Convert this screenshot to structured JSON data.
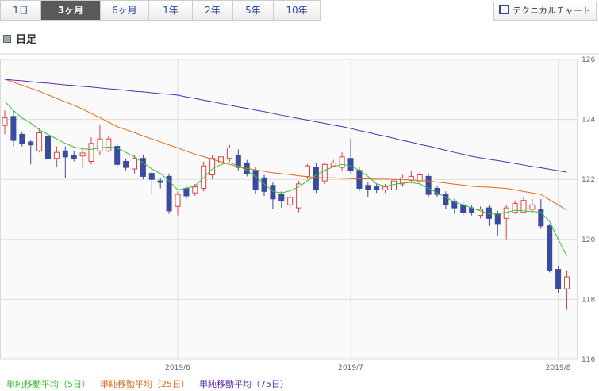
{
  "tabs": [
    "1日",
    "3ヶ月",
    "6ヶ月",
    "1年",
    "2年",
    "5年",
    "10年"
  ],
  "button": "テクニカルチャート",
  "chart_label": "日足",
  "chart_data": {
    "type": "candlestick",
    "categories": [
      null,
      null,
      null,
      null,
      null,
      null,
      null,
      null,
      null,
      null,
      null,
      null,
      null,
      null,
      null,
      null,
      null,
      null,
      null,
      null,
      "2019/6",
      null,
      null,
      null,
      null,
      null,
      null,
      null,
      null,
      null,
      null,
      null,
      null,
      null,
      null,
      null,
      null,
      null,
      null,
      null,
      "2019/7",
      null,
      null,
      null,
      null,
      null,
      null,
      null,
      null,
      null,
      null,
      null,
      null,
      null,
      null,
      null,
      null,
      null,
      null,
      null,
      null,
      null,
      null,
      null,
      "2019/8",
      null
    ],
    "open": [
      123.8,
      124.1,
      123.5,
      123.25,
      122.95,
      123.45,
      122.7,
      122.95,
      122.8,
      122.78,
      122.6,
      122.95,
      122.95,
      123.1,
      122.6,
      122.35,
      122.7,
      122.2,
      121.95,
      122.1,
      121.1,
      121.7,
      121.55,
      121.7,
      122.15,
      122.55,
      122.7,
      122.8,
      122.55,
      122.3,
      122.05,
      121.8,
      121.5,
      121.15,
      121.05,
      122.1,
      122.4,
      121.95,
      122.45,
      122.4,
      122.7,
      122.3,
      121.8,
      121.75,
      121.65,
      121.65,
      121.85,
      121.97,
      121.95,
      122.1,
      121.7,
      121.5,
      121.25,
      121.15,
      121.05,
      120.8,
      121.05,
      120.85,
      120.7,
      120.9,
      120.9,
      121.0,
      121.0,
      120.45,
      119.0,
      118.35
    ],
    "high": [
      124.3,
      124.3,
      123.6,
      123.3,
      123.7,
      123.6,
      123.1,
      123.1,
      122.95,
      123.0,
      123.4,
      123.8,
      123.45,
      123.2,
      122.7,
      122.8,
      122.8,
      122.3,
      122.05,
      122.2,
      121.6,
      121.8,
      121.85,
      122.6,
      122.8,
      123.0,
      123.15,
      123.0,
      122.65,
      122.4,
      122.15,
      121.9,
      121.6,
      121.5,
      121.95,
      122.5,
      122.55,
      122.55,
      122.65,
      122.9,
      123.35,
      122.4,
      121.9,
      121.85,
      121.85,
      122.05,
      122.15,
      122.3,
      122.25,
      122.2,
      121.8,
      121.6,
      121.35,
      121.25,
      121.15,
      121.1,
      121.15,
      120.95,
      121.15,
      121.3,
      121.4,
      121.35,
      121.35,
      120.5,
      119.1,
      118.95
    ],
    "low": [
      123.5,
      123.1,
      123.1,
      122.5,
      122.9,
      122.55,
      122.4,
      122.05,
      122.6,
      122.4,
      122.5,
      122.8,
      122.9,
      122.4,
      122.3,
      122.2,
      122.0,
      121.5,
      121.7,
      120.85,
      120.8,
      121.35,
      121.45,
      121.6,
      122.0,
      122.45,
      122.6,
      122.3,
      122.1,
      121.5,
      121.45,
      121.0,
      121.05,
      121.0,
      120.9,
      122.0,
      121.55,
      121.85,
      122.4,
      122.3,
      122.2,
      121.6,
      121.4,
      121.55,
      121.55,
      121.55,
      121.75,
      121.9,
      121.85,
      121.4,
      121.4,
      121.0,
      120.85,
      120.8,
      120.8,
      120.7,
      120.45,
      120.1,
      120.0,
      120.85,
      120.85,
      120.9,
      120.35,
      118.9,
      118.2,
      117.65
    ],
    "close": [
      124.05,
      123.3,
      123.2,
      123.15,
      123.55,
      122.7,
      122.9,
      122.75,
      122.7,
      122.88,
      123.2,
      123.35,
      123.35,
      122.5,
      122.4,
      122.7,
      122.1,
      122.0,
      121.9,
      120.95,
      121.5,
      121.45,
      121.75,
      122.45,
      122.7,
      122.75,
      123.05,
      122.4,
      122.2,
      121.65,
      121.6,
      121.35,
      121.3,
      121.4,
      121.85,
      122.45,
      121.65,
      122.5,
      122.55,
      122.75,
      122.3,
      121.7,
      121.65,
      121.65,
      121.75,
      121.95,
      122.05,
      122.1,
      122.15,
      121.5,
      121.5,
      121.15,
      121.05,
      120.9,
      120.9,
      121.0,
      120.7,
      120.5,
      121.05,
      121.2,
      121.3,
      121.15,
      120.45,
      118.95,
      118.35,
      118.75
    ],
    "up_color": "#e04040",
    "down_color": "#3a4aa0",
    "series": [
      {
        "name": "単純移動平均（5日）",
        "color": "#33c033",
        "values": [
          124.6,
          124.3,
          124.05,
          123.88,
          123.65,
          123.5,
          123.35,
          123.2,
          123.08,
          123.02,
          123.0,
          123.05,
          123.08,
          123.05,
          122.9,
          122.75,
          122.55,
          122.35,
          122.2,
          121.95,
          121.65,
          121.7,
          121.78,
          122.05,
          122.35,
          122.5,
          122.56,
          122.45,
          122.3,
          122.1,
          121.85,
          121.6,
          121.55,
          121.62,
          121.75,
          121.95,
          122.15,
          122.3,
          122.42,
          122.5,
          122.45,
          122.3,
          122.1,
          121.85,
          121.77,
          121.83,
          121.88,
          121.9,
          121.85,
          121.7,
          121.55,
          121.4,
          121.25,
          121.15,
          121.05,
          120.95,
          120.85,
          120.84,
          120.9,
          120.97,
          120.95,
          120.93,
          120.9,
          120.6,
          120.0,
          119.45
        ]
      },
      {
        "name": "単純移動平均（25日）",
        "color": "#e06a1a",
        "values": [
          125.34,
          125.24,
          125.14,
          125.04,
          124.94,
          124.82,
          124.7,
          124.59,
          124.47,
          124.35,
          124.2,
          124.06,
          123.91,
          123.76,
          123.66,
          123.56,
          123.45,
          123.35,
          123.25,
          123.15,
          123.05,
          122.94,
          122.84,
          122.76,
          122.67,
          122.59,
          122.5,
          122.42,
          122.37,
          122.32,
          122.27,
          122.22,
          122.19,
          122.16,
          122.12,
          122.09,
          122.06,
          122.05,
          122.05,
          122.04,
          122.03,
          122.02,
          122.02,
          122.01,
          122.01,
          122.0,
          121.99,
          121.98,
          121.96,
          121.95,
          121.91,
          121.88,
          121.84,
          121.81,
          121.77,
          121.75,
          121.74,
          121.72,
          121.7,
          121.65,
          121.6,
          121.55,
          121.5,
          121.32,
          121.15,
          120.97
        ]
      },
      {
        "name": "単純移動平均（75日）",
        "color": "#5a2ab8",
        "values": [
          125.34,
          125.31,
          125.29,
          125.26,
          125.23,
          125.21,
          125.18,
          125.15,
          125.13,
          125.1,
          125.08,
          125.05,
          125.02,
          125.0,
          124.97,
          124.94,
          124.92,
          124.89,
          124.86,
          124.84,
          124.81,
          124.75,
          124.7,
          124.64,
          124.59,
          124.53,
          124.48,
          124.42,
          124.37,
          124.31,
          124.26,
          124.2,
          124.14,
          124.09,
          124.03,
          123.98,
          123.92,
          123.87,
          123.81,
          123.76,
          123.7,
          123.63,
          123.57,
          123.5,
          123.44,
          123.37,
          123.3,
          123.24,
          123.17,
          123.11,
          123.04,
          122.97,
          122.9,
          122.84,
          122.77,
          122.72,
          122.67,
          122.63,
          122.58,
          122.53,
          122.48,
          122.43,
          122.39,
          122.34,
          122.29,
          122.24
        ]
      }
    ],
    "ylim": [
      116,
      126
    ],
    "yticks": [
      116,
      118,
      120,
      122,
      124,
      126
    ],
    "grid": true
  }
}
